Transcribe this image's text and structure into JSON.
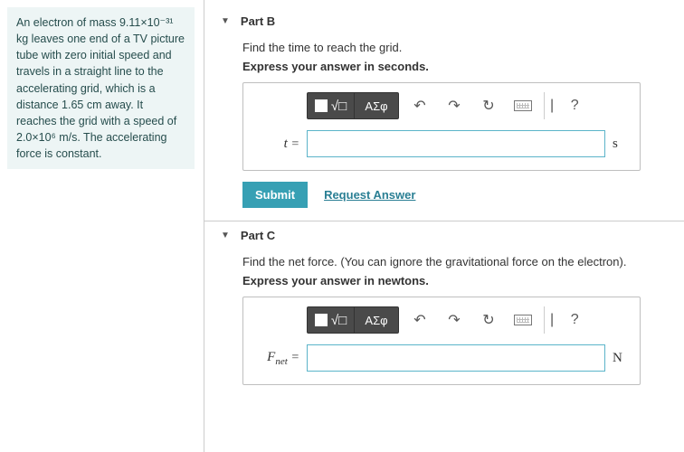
{
  "problem": {
    "text": "An electron of mass 9.11×10⁻³¹ kg leaves one end of a TV picture tube with zero initial speed and travels in a straight line to the accelerating grid, which is a distance 1.65 cm away. It reaches the grid with a speed of 2.0×10⁶ m/s. The accelerating force is constant."
  },
  "parts": [
    {
      "title": "Part B",
      "instruction": "Find the time to reach the grid.",
      "format": "Express your answer in seconds.",
      "variable": "t",
      "variable_sub": "",
      "unit": "s",
      "show_submit": true,
      "submit_label": "Submit",
      "request_label": "Request Answer"
    },
    {
      "title": "Part C",
      "instruction": "Find the net force. (You can ignore the gravitational force on the electron).",
      "format": "Express your answer in newtons.",
      "variable": "F",
      "variable_sub": "net",
      "unit": "N",
      "show_submit": false
    }
  ],
  "toolbar": {
    "greek": "ΑΣφ",
    "undo": "↶",
    "redo": "↷",
    "reset": "↻",
    "help": "?",
    "sep": "|"
  },
  "colors": {
    "problem_bg": "#edf5f5",
    "accent": "#37a0b4",
    "input_border": "#5bb4c9"
  }
}
